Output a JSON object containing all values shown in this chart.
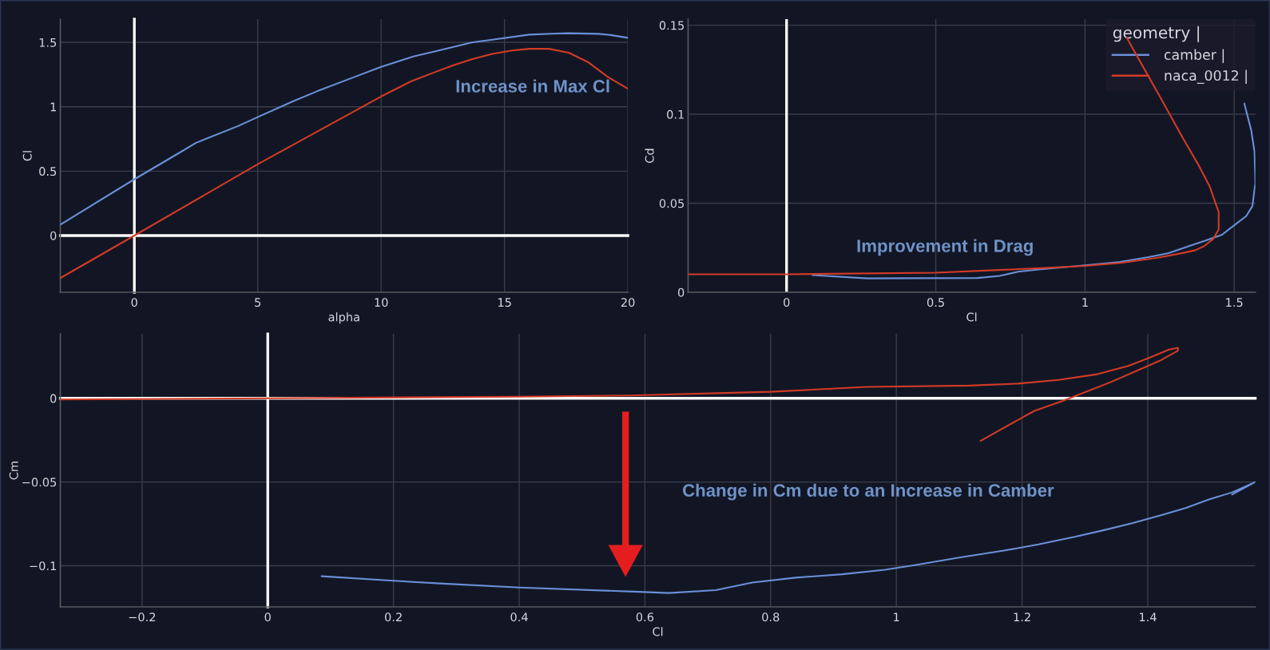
{
  "chart_data": [
    {
      "type": "line",
      "xlabel": "alpha",
      "ylabel": "Cl",
      "xlim": [
        -3,
        20
      ],
      "ylim": [
        -0.44,
        1.68
      ],
      "xticks": [
        0,
        5,
        10,
        15,
        20
      ],
      "yticks": [
        0,
        0.5,
        1,
        1.5
      ],
      "grid": true,
      "annotations": [
        "Increase in Max Cl"
      ],
      "series": [
        {
          "color": "#6a8fd8",
          "x": [
            -3,
            0,
            1.8,
            2.5,
            4.2,
            5,
            6.4,
            7.4,
            8.9,
            10,
            11.3,
            12.2,
            13.7,
            14.5,
            16,
            17.1,
            17.6,
            18.8,
            19.3,
            20
          ],
          "values": [
            0.085,
            0.437,
            0.64,
            0.72,
            0.85,
            0.92,
            1.04,
            1.12,
            1.23,
            1.31,
            1.39,
            1.43,
            1.5,
            1.52,
            1.56,
            1.568,
            1.571,
            1.566,
            1.557,
            1.535
          ]
        },
        {
          "color": "#d33a26",
          "x": [
            -3,
            0,
            5,
            10,
            11.2,
            12.2,
            12.9,
            13.7,
            14.5,
            15.3,
            16,
            16.8,
            17.6,
            18.4,
            19.2,
            20
          ],
          "values": [
            -0.33,
            0,
            0.554,
            1.08,
            1.196,
            1.27,
            1.32,
            1.37,
            1.41,
            1.437,
            1.45,
            1.45,
            1.42,
            1.345,
            1.23,
            1.14
          ]
        }
      ]
    },
    {
      "type": "line",
      "xlabel": "Cl",
      "ylabel": "Cd",
      "xlim": [
        -0.33,
        1.571
      ],
      "ylim": [
        0,
        0.1534
      ],
      "xticks": [
        0,
        0.5,
        1,
        1.5
      ],
      "yticks": [
        0,
        0.05,
        0.1,
        0.15
      ],
      "grid": true,
      "legend": "top right",
      "legend_title": "geometry |",
      "ref_lines": [
        {
          "axis": "x",
          "value": 0,
          "color": "#ffffff"
        }
      ],
      "annotations": [
        "Improvement in Drag"
      ],
      "series": [
        {
          "name": "camber |",
          "color": "#6a8fd8",
          "x": [
            0.087,
            0.27,
            0.64,
            0.714,
            0.776,
            0.844,
            1,
            1.117,
            1.213,
            1.28,
            1.35,
            1.404,
            1.459,
            1.5,
            1.54,
            1.561,
            1.571,
            1.568,
            1.557,
            1.534
          ],
          "values": [
            0.0096,
            0.0078,
            0.008,
            0.0092,
            0.0115,
            0.0128,
            0.0151,
            0.017,
            0.0197,
            0.022,
            0.026,
            0.029,
            0.0323,
            0.0376,
            0.0427,
            0.0484,
            0.0615,
            0.079,
            0.091,
            0.106
          ]
        },
        {
          "name": "naca_0012 |",
          "color": "#d33a26",
          "x": [
            -0.33,
            0,
            0.5,
            0.71,
            0.85,
            1,
            1.12,
            1.24,
            1.32,
            1.37,
            1.4,
            1.43,
            1.448,
            1.448,
            1.418,
            1.377,
            1.33,
            1.254,
            1.19,
            1.14
          ],
          "values": [
            0.0101,
            0.0101,
            0.011,
            0.0125,
            0.0135,
            0.0148,
            0.0165,
            0.0193,
            0.0218,
            0.0236,
            0.026,
            0.03,
            0.0353,
            0.045,
            0.0594,
            0.0725,
            0.086,
            0.109,
            0.128,
            0.143
          ]
        }
      ]
    },
    {
      "type": "line",
      "xlabel": "Cl",
      "ylabel": "Cm",
      "xlim": [
        -0.33,
        1.571
      ],
      "ylim": [
        -0.1246,
        0.0385
      ],
      "xticks": [
        {
          "value": -0.2,
          "label": "−0.2"
        },
        0,
        0.2,
        0.4,
        0.6,
        0.8,
        1,
        1.2,
        1.4
      ],
      "yticks": [
        {
          "value": -0.1,
          "label": "−0.1"
        },
        {
          "value": -0.05,
          "label": "−0.05"
        },
        0
      ],
      "grid": true,
      "annotations": [
        "Change in Cm due to an Increase in Camber"
      ],
      "series": [
        {
          "color": "#6a8fd8",
          "x": [
            0.0857,
            0.2,
            0.279,
            0.4,
            0.59,
            0.638,
            0.713,
            0.771,
            0.84,
            0.914,
            0.982,
            1.031,
            1.096,
            1.171,
            1.226,
            1.284,
            1.333,
            1.375,
            1.421,
            1.46,
            1.499,
            1.534,
            1.571,
            1.534
          ],
          "values": [
            -0.1063,
            -0.109,
            -0.1107,
            -0.113,
            -0.1156,
            -0.1163,
            -0.1146,
            -0.11,
            -0.1071,
            -0.1051,
            -0.1024,
            -0.0995,
            -0.0954,
            -0.091,
            -0.0873,
            -0.0827,
            -0.0785,
            -0.0746,
            -0.0698,
            -0.0656,
            -0.0602,
            -0.0562,
            -0.05,
            -0.0575
          ]
        },
        {
          "color": "#d33a26",
          "x": [
            -0.33,
            0,
            0.4,
            0.577,
            0.8,
            0.953,
            1.116,
            1.194,
            1.258,
            1.32,
            1.369,
            1.405,
            1.433,
            1.448,
            1.448,
            1.419,
            1.34,
            1.265,
            1.219,
            1.134
          ],
          "values": [
            -0.0007,
            0,
            0.001,
            0.0017,
            0.0039,
            0.0068,
            0.0076,
            0.0088,
            0.011,
            0.0144,
            0.0193,
            0.0246,
            0.029,
            0.0302,
            0.0285,
            0.0224,
            0.0095,
            -0.0015,
            -0.0076,
            -0.0254
          ]
        }
      ]
    }
  ]
}
